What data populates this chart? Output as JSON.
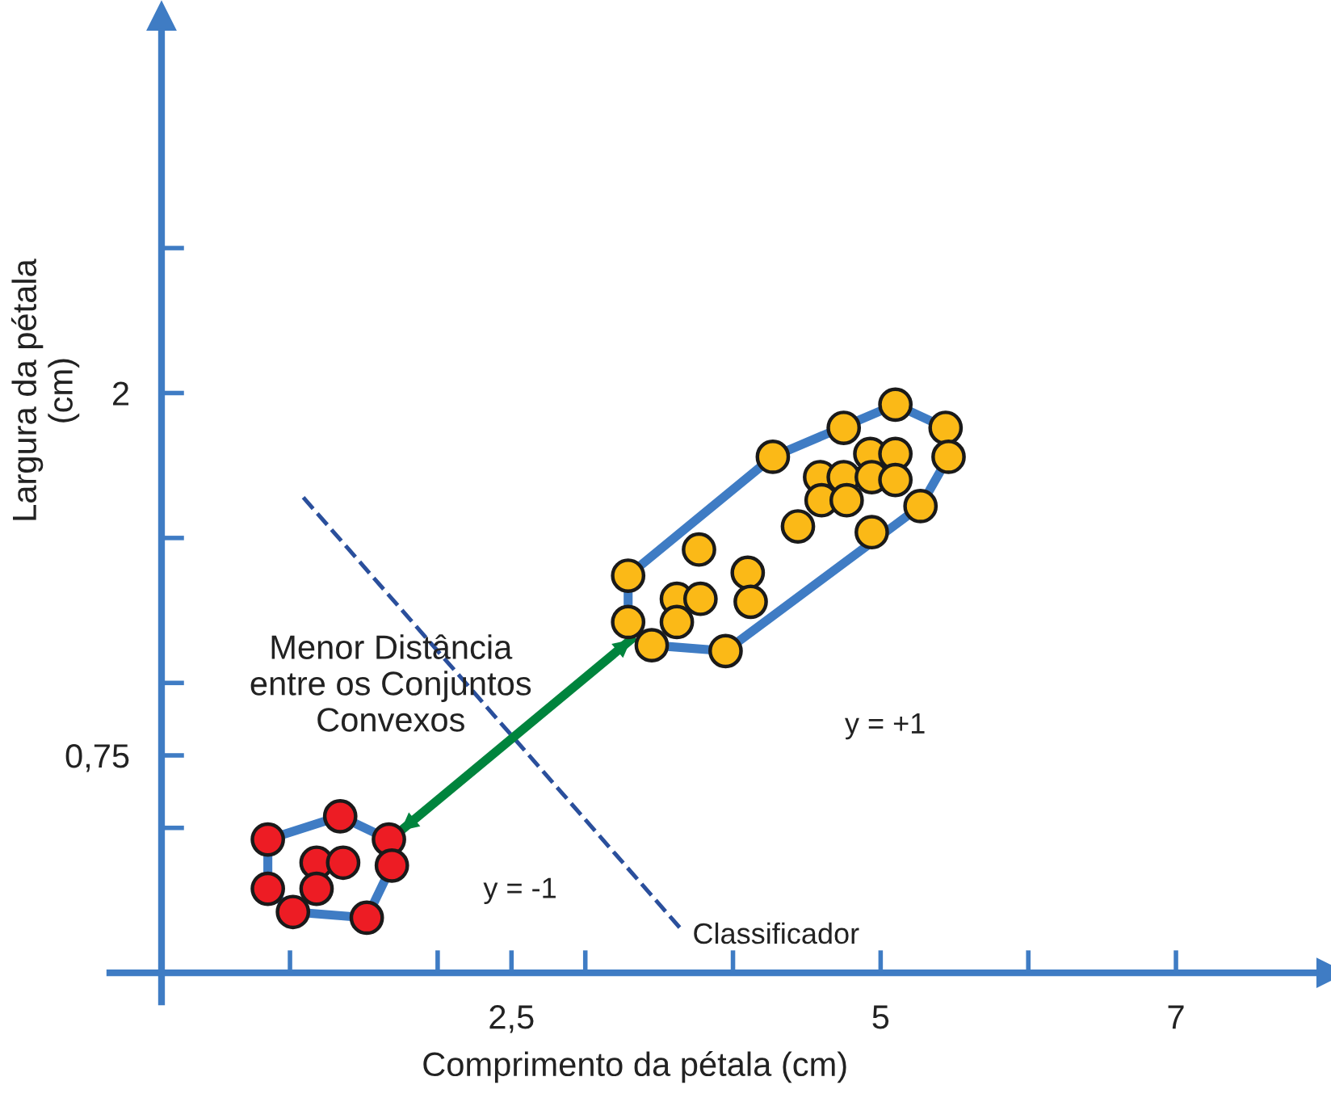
{
  "chart_data": {
    "type": "scatter",
    "xlabel": "Comprimento da pétala (cm)",
    "ylabel": "Largura da pétala\n(cm)",
    "xlim": [
      -0.22,
      8.05
    ],
    "ylim": [
      -0.1,
      3.3
    ],
    "xticks": [
      {
        "value": 1,
        "label": null
      },
      {
        "value": 2,
        "label": null
      },
      {
        "value": 2.5,
        "label": "2,5"
      },
      {
        "value": 3,
        "label": null
      },
      {
        "value": 4,
        "label": null
      },
      5,
      {
        "value": 6,
        "label": null
      },
      7
    ],
    "yticks": [
      {
        "value": 0.5,
        "label": null
      },
      {
        "value": 0.75,
        "label": "0,75"
      },
      {
        "value": 1,
        "label": null
      },
      {
        "value": 1.5,
        "label": null
      },
      2,
      {
        "value": 2.5,
        "label": null
      }
    ],
    "series": [
      {
        "color": "#ed1c24",
        "marker": "circle",
        "x": [
          0.85,
          1.34,
          1.67,
          1.18,
          1.36,
          1.69,
          0.85,
          1.18,
          1.02,
          1.52
        ],
        "values": [
          0.46,
          0.54,
          0.46,
          0.38,
          0.38,
          0.37,
          0.29,
          0.29,
          0.21,
          0.19
        ]
      },
      {
        "color": "#fbb917",
        "marker": "circle",
        "x": [
          3.29,
          3.77,
          4.1,
          3.62,
          3.78,
          3.29,
          3.62,
          3.45,
          3.95,
          4.12,
          4.27,
          4.59,
          4.75,
          4.93,
          5.1,
          4.75,
          5.1,
          5.44,
          5.46,
          4.94,
          5.1,
          4.6,
          4.77,
          4.44,
          4.94,
          5.27
        ],
        "values": [
          1.37,
          1.46,
          1.38,
          1.29,
          1.29,
          1.21,
          1.21,
          1.13,
          1.11,
          1.28,
          1.78,
          1.71,
          1.71,
          1.79,
          1.79,
          1.88,
          1.96,
          1.88,
          1.78,
          1.71,
          1.7,
          1.63,
          1.63,
          1.54,
          1.52,
          1.61
        ]
      },
      {
        "type": "line",
        "name": "Classificador",
        "color": "#2a4f9c",
        "line_style": "dashed",
        "x": [
          1.09,
          3.65
        ],
        "values": [
          1.64,
          0.15
        ]
      },
      {
        "type": "line",
        "color": "#00843d",
        "x": [
          1.75,
          3.31
        ],
        "values": [
          0.49,
          1.15
        ]
      }
    ],
    "annotations": [
      "Menor Distância\nentre os Conjuntos\nConvexos",
      "y = +1",
      "y = -1"
    ]
  }
}
